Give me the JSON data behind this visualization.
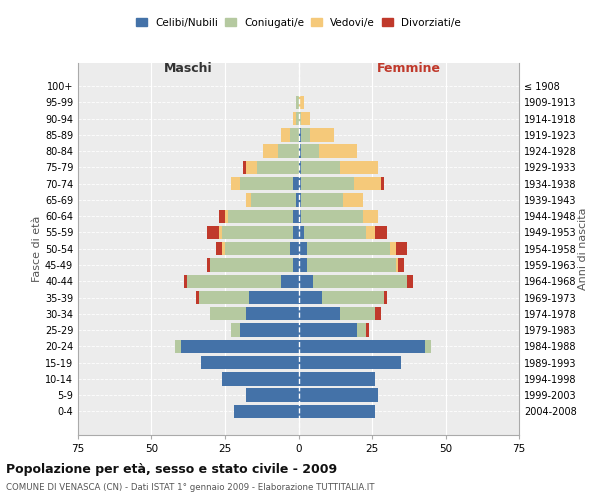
{
  "age_groups": [
    "0-4",
    "5-9",
    "10-14",
    "15-19",
    "20-24",
    "25-29",
    "30-34",
    "35-39",
    "40-44",
    "45-49",
    "50-54",
    "55-59",
    "60-64",
    "65-69",
    "70-74",
    "75-79",
    "80-84",
    "85-89",
    "90-94",
    "95-99",
    "100+"
  ],
  "birth_years": [
    "2004-2008",
    "1999-2003",
    "1994-1998",
    "1989-1993",
    "1984-1988",
    "1979-1983",
    "1974-1978",
    "1969-1973",
    "1964-1968",
    "1959-1963",
    "1954-1958",
    "1949-1953",
    "1944-1948",
    "1939-1943",
    "1934-1938",
    "1929-1933",
    "1924-1928",
    "1919-1923",
    "1914-1918",
    "1909-1913",
    "≤ 1908"
  ],
  "male": {
    "celibi": [
      22,
      18,
      26,
      33,
      40,
      20,
      18,
      17,
      6,
      2,
      3,
      2,
      2,
      1,
      2,
      0,
      0,
      0,
      0,
      0,
      0
    ],
    "coniugati": [
      0,
      0,
      0,
      0,
      2,
      3,
      12,
      17,
      32,
      28,
      22,
      24,
      22,
      15,
      18,
      14,
      7,
      3,
      1,
      1,
      0
    ],
    "vedovi": [
      0,
      0,
      0,
      0,
      0,
      0,
      0,
      0,
      0,
      0,
      1,
      1,
      1,
      2,
      3,
      4,
      5,
      3,
      1,
      0,
      0
    ],
    "divorziati": [
      0,
      0,
      0,
      0,
      0,
      0,
      0,
      1,
      1,
      1,
      2,
      4,
      2,
      0,
      0,
      1,
      0,
      0,
      0,
      0,
      0
    ]
  },
  "female": {
    "nubili": [
      26,
      27,
      26,
      35,
      43,
      20,
      14,
      8,
      5,
      3,
      3,
      2,
      1,
      1,
      1,
      1,
      1,
      1,
      0,
      0,
      0
    ],
    "coniugate": [
      0,
      0,
      0,
      0,
      2,
      3,
      12,
      21,
      32,
      30,
      28,
      21,
      21,
      14,
      18,
      13,
      6,
      3,
      1,
      0,
      0
    ],
    "vedove": [
      0,
      0,
      0,
      0,
      0,
      0,
      0,
      0,
      0,
      1,
      2,
      3,
      5,
      7,
      9,
      13,
      13,
      8,
      3,
      2,
      0
    ],
    "divorziate": [
      0,
      0,
      0,
      0,
      0,
      1,
      2,
      1,
      2,
      2,
      4,
      4,
      0,
      0,
      1,
      0,
      0,
      0,
      0,
      0,
      0
    ]
  },
  "colors": {
    "celibi": "#4472a8",
    "coniugati": "#b5c9a0",
    "vedovi": "#f5c97a",
    "divorziati": "#c0392b"
  },
  "xlim": 75,
  "title": "Popolazione per età, sesso e stato civile - 2009",
  "subtitle": "COMUNE DI VENASCA (CN) - Dati ISTAT 1° gennaio 2009 - Elaborazione TUTTITALIA.IT",
  "ylabel_left": "Fasce di età",
  "ylabel_right": "Anni di nascita",
  "xlabel_left": "Maschi",
  "xlabel_right": "Femmine",
  "bg_color": "#ececec"
}
